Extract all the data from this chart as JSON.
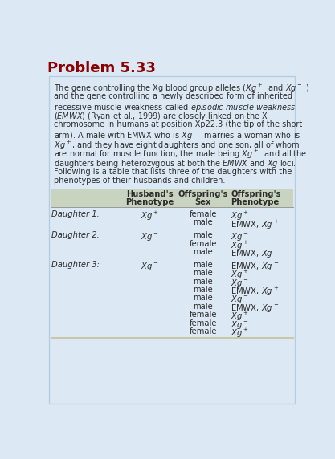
{
  "title": "Problem 5.33",
  "title_color": "#8B0000",
  "outer_bg": "#dce9f5",
  "inner_bg": "#e8f0f8",
  "body_text_color": "#2c2c2c",
  "header_bg": "#c8d4c0",
  "bottom_line_color": "#c8c8a8",
  "para_lines": [
    "The gene controlling the Xg blood group alleles ($Xg^+$  and $Xg^-$ )",
    "and the gene controlling a newly described form of inherited",
    "recessive muscle weakness called $\\it{episodic\\ muscle\\ weakness}$",
    "($\\it{EMWX}$) (Ryan et al., 1999) are closely linked on the X",
    "chromosome in humans at position Xp22.3 (the tip of the short",
    "arm). A male with EMWX who is $Xg^-$  marries a woman who is",
    "$Xg^+$, and they have eight daughters and one son, all of whom",
    "are normal for muscle function, the male being $Xg^+$  and all the",
    "daughters being heterozygous at both the $\\it{EMWX}$ and $\\it{Xg}$ loci.",
    "Following is a table that lists three of the daughters with the",
    "phenotypes of their husbands and children."
  ],
  "table_headers": [
    "Husband's\nPhenotype",
    "Offspring's\nSex",
    "Offspring's\nPhenotype"
  ],
  "rows": [
    {
      "daughter": "Daughter 1:",
      "husband": "$Xg^+$",
      "offspring_sex": [
        "female",
        "male"
      ],
      "offspring_phenotype": [
        "$Xg^+$",
        "EMWX, $Xg^+$"
      ]
    },
    {
      "daughter": "Daughter 2:",
      "husband": "$Xg^-$",
      "offspring_sex": [
        "male",
        "female",
        "male"
      ],
      "offspring_phenotype": [
        "$Xg^-$",
        "$Xg^+$",
        "EMWX, $Xg^-$"
      ]
    },
    {
      "daughter": "Daughter 3:",
      "husband": "$Xg^-$",
      "offspring_sex": [
        "male",
        "male",
        "male",
        "male",
        "male",
        "male",
        "female",
        "female",
        "female"
      ],
      "offspring_phenotype": [
        "EMWX, $Xg^-$",
        "$Xg^+$",
        "$Xg^-$",
        "EMWX, $Xg^+$",
        "$Xg^-$",
        "EMWX, $Xg^-$",
        "$Xg^+$",
        "$Xg^-$",
        "$Xg^+$"
      ]
    }
  ]
}
